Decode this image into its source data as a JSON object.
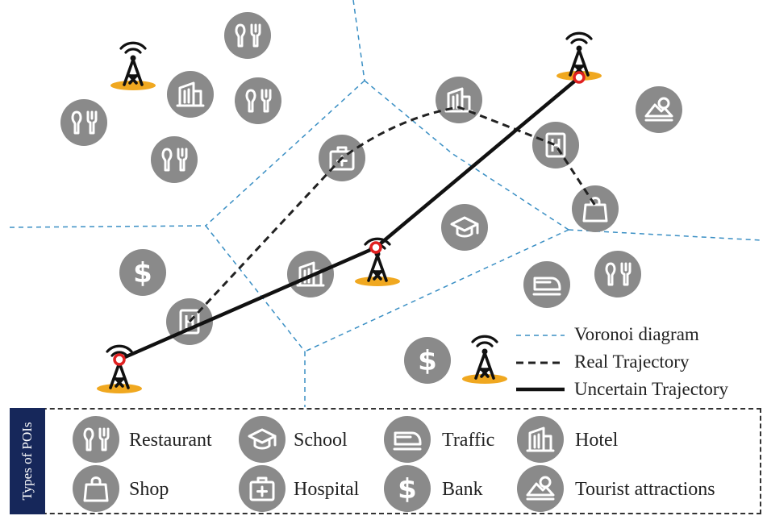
{
  "legend": {
    "voronoi": "Voronoi diagram",
    "real": "Real Trajectory",
    "uncertain": "Uncertain Trajectory"
  },
  "poi_panel": {
    "title": "Types of POIs",
    "items": [
      {
        "label": "Restaurant",
        "icon": "restaurant-icon"
      },
      {
        "label": "School",
        "icon": "school-icon"
      },
      {
        "label": "Traffic",
        "icon": "traffic-icon"
      },
      {
        "label": "Hotel",
        "icon": "hotel-icon"
      },
      {
        "label": "Shop",
        "icon": "shop-icon"
      },
      {
        "label": "Hospital",
        "icon": "hospital-icon"
      },
      {
        "label": "Bank",
        "icon": "bank-icon"
      },
      {
        "label": "Tourist attractions",
        "icon": "tourist-attraction-icon"
      }
    ]
  },
  "colors": {
    "poi_fill": "#8a8a8a",
    "tower_base": "#f0a820",
    "voronoi": "#3a8fc4",
    "trajectory": "#111111",
    "panel_side": "#16275a",
    "marker": "#e02020"
  }
}
